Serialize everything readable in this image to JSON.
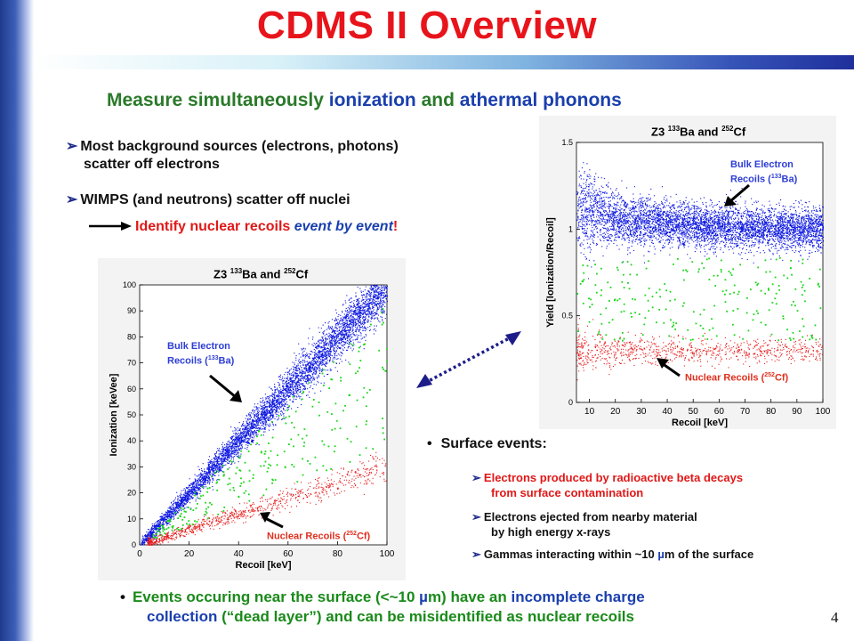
{
  "slide": {
    "title": "CDMS II Overview",
    "subtitle_part1": "Measure simultaneously ",
    "subtitle_part2": "ionization",
    "subtitle_part3": " and ",
    "subtitle_part4": "athermal phonons",
    "page_number": "4",
    "bullet_marker": "➢",
    "dot_marker": "•"
  },
  "bullets": {
    "b1_line1": "Most background sources (electrons, photons)",
    "b1_line2": "scatter off electrons",
    "b2": "WIMPS (and neutrons) scatter off nuclei",
    "identify_part1": "Identify nuclear recoils ",
    "identify_part2": "event by event",
    "identify_part3": "!"
  },
  "surface": {
    "heading": "Surface events:",
    "item1_line1": "Electrons produced by radioactive beta decays",
    "item1_line2": "from surface contamination",
    "item2_line1": "Electrons ejected from nearby material",
    "item2_line2": "by high energy x-rays",
    "item3_pre": "Gammas interacting within ~10 ",
    "item3_mu": "µ",
    "item3_post": "m of the surface"
  },
  "bottom": {
    "line1_part1": "Events occuring near the surface (<~10 ",
    "line1_mu": "µ",
    "line1_part2": "m) have an ",
    "line1_part3": "incomplete charge",
    "line2_part1": "collection",
    "line2_part2": " (“dead layer”) and can be misidentified as nuclear recoils"
  },
  "chart_data": [
    {
      "type": "scatter",
      "title_prefix": "Z3 ",
      "title_sup1": "133",
      "title_mid": "Ba and ",
      "title_sup2": "252",
      "title_suffix": "Cf",
      "xlabel": "Recoil [keV]",
      "ylabel": "Ionization [keVee]",
      "xlim": [
        0,
        100
      ],
      "ylim": [
        0,
        100
      ],
      "xticks": [
        0,
        20,
        40,
        60,
        80,
        100
      ],
      "yticks": [
        0,
        10,
        20,
        30,
        40,
        50,
        60,
        70,
        80,
        90,
        100
      ],
      "series": [
        {
          "color": "#0b16e0",
          "description_band": "y = x",
          "x_range": [
            0,
            100
          ]
        },
        {
          "color": "#1bd61b",
          "description_band": "sparse between bands",
          "x_range": [
            5,
            100
          ]
        },
        {
          "color": "#e61a1a",
          "description_band": "y = 0.3x",
          "x_range": [
            2,
            100
          ]
        }
      ],
      "annotations": {
        "bulk_line1": "Bulk Electron",
        "bulk_line2_pre": "Recoils (",
        "bulk_sup": "133",
        "bulk_line2_post": "Ba)",
        "nuclear_pre": "Nuclear Recoils (",
        "nuclear_sup": "252",
        "nuclear_post": "Cf)"
      }
    },
    {
      "type": "scatter",
      "title_prefix": "Z3 ",
      "title_sup1": "133",
      "title_mid": "Ba and ",
      "title_sup2": "252",
      "title_suffix": "Cf",
      "xlabel": "Recoil [keV]",
      "ylabel": "Yield [Ionization/Recoil]",
      "xlim": [
        5,
        100
      ],
      "ylim": [
        0,
        1.5
      ],
      "xticks": [
        10,
        20,
        30,
        40,
        50,
        60,
        70,
        80,
        90,
        100
      ],
      "yticks": [
        0,
        0.5,
        1,
        1.5
      ],
      "series": [
        {
          "color": "#0b16e0",
          "description_band": "yield ≈ 1.0",
          "x_range": [
            5,
            100
          ]
        },
        {
          "color": "#1bd61b",
          "description_band": "yield 0.35–0.8",
          "x_range": [
            5,
            100
          ]
        },
        {
          "color": "#e61a1a",
          "description_band": "yield ≈ 0.3",
          "x_range": [
            5,
            100
          ]
        }
      ],
      "annotations": {
        "bulk_line1": "Bulk Electron",
        "bulk_line2_pre": "Recoils (",
        "bulk_sup": "133",
        "bulk_line2_post": "Ba)",
        "nuclear_pre": "Nuclear Recoils (",
        "nuclear_sup": "252",
        "nuclear_post": "Cf)"
      }
    }
  ],
  "colors": {
    "title_red": "#e8141b",
    "accent_green": "#2a7a2a",
    "accent_blue": "#1a3fae",
    "electron_blue": "#0b16e0",
    "neutron_green": "#1bd61b",
    "nuclear_red": "#e61a1a"
  }
}
